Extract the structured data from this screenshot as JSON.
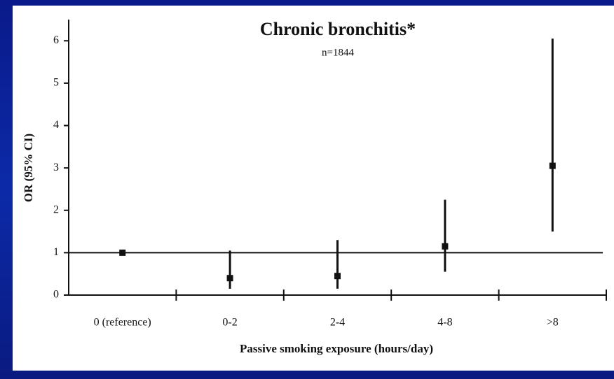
{
  "chart_data": {
    "type": "errorbar",
    "title": "Chronic bronchitis*",
    "subtitle": "n=1844",
    "x_label": "Passive smoking exposure (hours/day)",
    "y_label": "OR (95% CI)",
    "categories": [
      "0 (reference)",
      "0-2",
      "2-4",
      "4-8",
      ">8"
    ],
    "values": [
      1,
      0.4,
      0.45,
      1.15,
      3.05
    ],
    "lower": [
      null,
      0.15,
      0.15,
      0.55,
      1.5
    ],
    "upper": [
      null,
      1.05,
      1.3,
      2.25,
      6.05
    ],
    "reference_line": 1,
    "color": "#111111",
    "ylim": [
      0,
      6.5
    ],
    "yticks": [
      0,
      1,
      2,
      3,
      4,
      5,
      6
    ]
  }
}
